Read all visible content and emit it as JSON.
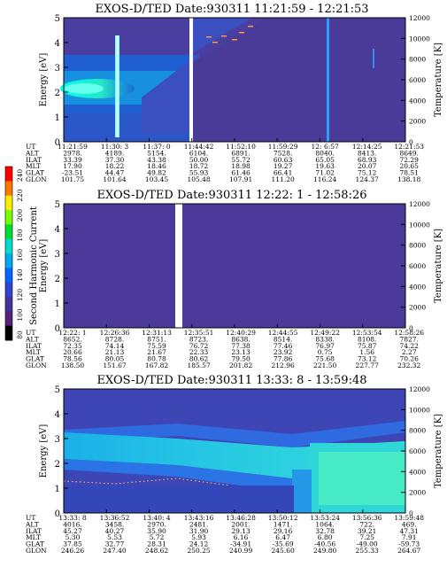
{
  "chart_data": [
    {
      "type": "heatmap",
      "title": "EXOS-D/TED   Date:930311   11:21:59 - 12:21:53",
      "ylabel": "Energy [eV]",
      "y2label": "Temperature [K]",
      "ylim": [
        0,
        5
      ],
      "y2lim": [
        0,
        12000
      ],
      "yticks": [
        "0",
        "1",
        "2",
        "3",
        "4",
        "5"
      ],
      "y2ticks": [
        "0",
        "2000",
        "4000",
        "6000",
        "8000",
        "10000",
        "12000"
      ],
      "row_labels": [
        "UT",
        "ALT",
        "ILAT",
        "MLT",
        "GLAT",
        "GLON"
      ],
      "columns": [
        [
          "11:21:59",
          "2978.",
          "33.39",
          "17.90",
          "-23.51",
          "101.75"
        ],
        [
          "11:30: 3",
          "4189.",
          "37.30",
          "18.22",
          "44.47",
          "101.64"
        ],
        [
          "11:37: 0",
          "5154.",
          "43.38",
          "18.46",
          "49.82",
          "103.45"
        ],
        [
          "11:44:42",
          "6104.",
          "50.00",
          "18.72",
          "55.93",
          "105.48"
        ],
        [
          "11:52:10",
          "6891.",
          "55.72",
          "18.98",
          "61.46",
          "107.91"
        ],
        [
          "11:59:29",
          "7528.",
          "60.63",
          "19.27",
          "66.41",
          "111.20"
        ],
        [
          "12: 6:57",
          "8040.",
          "65.05",
          "19.63",
          "71.02",
          "116.24"
        ],
        [
          "12:14:25",
          "8413.",
          "68.93",
          "20.07",
          "75.12",
          "124.37"
        ],
        [
          "12:21:53",
          "8649.",
          "72.29",
          "20.65",
          "78.51",
          "138.18"
        ]
      ]
    },
    {
      "type": "heatmap",
      "title": "EXOS-D/TED   Date:930311   12:22: 1 - 12:58:26",
      "ylabel": "Energy [eV]",
      "y2label": "Temperature [K]",
      "ylim": [
        0,
        5
      ],
      "y2lim": [
        0,
        12000
      ],
      "yticks": [
        "0",
        "1",
        "2",
        "3",
        "4",
        "5"
      ],
      "y2ticks": [
        "0",
        "2000",
        "4000",
        "6000",
        "8000",
        "10000",
        "12000"
      ],
      "row_labels": [
        "UT",
        "ALT",
        "ILAT",
        "MLT",
        "GLAT",
        "GLON"
      ],
      "columns": [
        [
          "12:22: 1",
          "8652.",
          "72.35",
          "20.66",
          "78.56",
          "138.50"
        ],
        [
          "12:26:36",
          "8728.",
          "74.14",
          "21.13",
          "80.05",
          "151.67"
        ],
        [
          "12:31:13",
          "8751.",
          "75.59",
          "21.67",
          "80.78",
          "167.82"
        ],
        [
          "12:35:51",
          "8723.",
          "76.72",
          "22.33",
          "80.62",
          "185.57"
        ],
        [
          "12:40:29",
          "8638.",
          "77.38",
          "23.13",
          "79.50",
          "201.82"
        ],
        [
          "12:44:55",
          "8514.",
          "77.46",
          "23.92",
          "77.86",
          "212.96"
        ],
        [
          "12:49:22",
          "8338.",
          "76.97",
          "0.75",
          "75.68",
          "221.50"
        ],
        [
          "12:53:54",
          "8108.",
          "75.87",
          "1.56",
          "73.12",
          "227.77"
        ],
        [
          "12:58:26",
          "7827.",
          "74.22",
          "2.27",
          "70.26",
          "232.32"
        ]
      ]
    },
    {
      "type": "heatmap",
      "title": "EXOS-D/TED   Date:930311   13:33: 8 - 13:59:48",
      "ylabel": "Energy [eV]",
      "y2label": "Temperature [K]",
      "ylim": [
        0,
        5
      ],
      "y2lim": [
        0,
        12000
      ],
      "yticks": [
        "0",
        "1",
        "2",
        "3",
        "4",
        "5"
      ],
      "y2ticks": [
        "0",
        "2000",
        "4000",
        "6000",
        "8000",
        "10000",
        "12000"
      ],
      "row_labels": [
        "UT",
        "ALT",
        "ILAT",
        "MLT",
        "GLAT",
        "GLON"
      ],
      "columns": [
        [
          "13:33: 8",
          "4016.",
          "45.27",
          "5.30",
          "37.85",
          "246.26"
        ],
        [
          "13:36:52",
          "3458.",
          "40.27",
          "5.53",
          "32.77",
          "247.40"
        ],
        [
          "13:40: 4",
          "2970.",
          "35.90",
          "5.72",
          "28.31",
          "248.62"
        ],
        [
          "13:43:16",
          "2481.",
          "31.90",
          "5.93",
          "24.12",
          "250.25"
        ],
        [
          "13:46:28",
          "2001.",
          "29.13",
          "6.16",
          "-34.91",
          "240.99"
        ],
        [
          "13:50:12",
          "1471.",
          "29.16",
          "6.47",
          "-35.69",
          "245.60"
        ],
        [
          "13:53:24",
          "1064.",
          "32.78",
          "6.80",
          "-40.56",
          "249.80"
        ],
        [
          "13:56:36",
          "722.",
          "39.21",
          "7.25",
          "-49.00",
          "255.33"
        ],
        [
          "13:59:48",
          "469.",
          "47.31",
          "7.91",
          "-59.73",
          "264.67"
        ]
      ]
    }
  ],
  "colorbar": {
    "label": "Second Harmonic Current",
    "ticks": [
      "240",
      "220",
      "200",
      "180",
      "160",
      "140",
      "120",
      "100",
      "80"
    ],
    "colors": [
      "#ff0000",
      "#ff7700",
      "#ffee00",
      "#77ff00",
      "#00dd33",
      "#00ddcc",
      "#00aaee",
      "#0066ff",
      "#3344cc",
      "#443399",
      "#552277",
      "#000000"
    ]
  }
}
